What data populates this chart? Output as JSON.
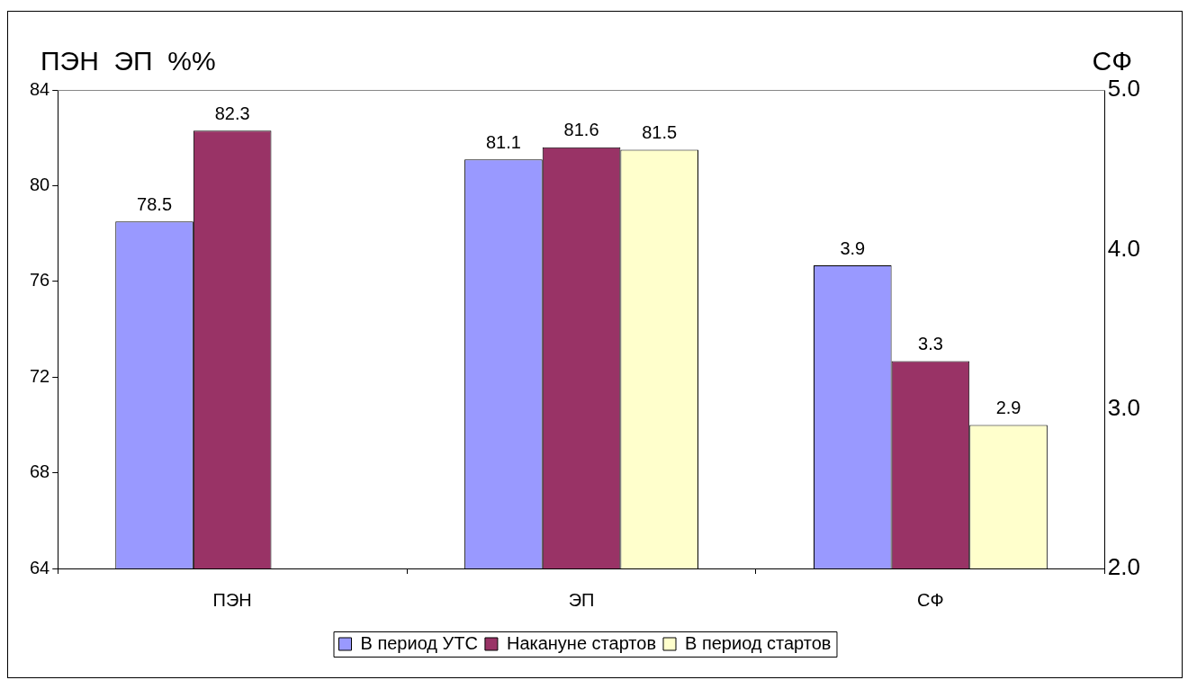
{
  "chart_data": {
    "type": "bar",
    "categories": [
      "ПЭН",
      "ЭП",
      "СФ"
    ],
    "ylabel": "ПЭН  ЭП  %%",
    "y2label": "СФ",
    "series": [
      {
        "name": "В период УТС",
        "color": "#9999ff",
        "values": [
          78.5,
          81.1,
          null
        ]
      },
      {
        "name": "Накануне стартов",
        "color": "#993366",
        "values": [
          82.3,
          81.6,
          null
        ]
      },
      {
        "name": "В период стартов",
        "color": "#ffffcc",
        "values": [
          null,
          81.5,
          null
        ]
      },
      {
        "color": "#9999ff",
        "values": [
          null,
          null,
          3.9
        ],
        "axis": "y2"
      },
      {
        "color": "#993366",
        "values": [
          null,
          null,
          3.3
        ],
        "axis": "y2"
      },
      {
        "color": "#ffffcc",
        "values": [
          null,
          null,
          2.9
        ],
        "axis": "y2"
      }
    ],
    "ylim": [
      64,
      84
    ],
    "yticks": [
      64,
      68,
      72,
      76,
      80,
      84
    ],
    "y2lim": [
      2,
      5
    ],
    "y2ticks": [
      {
        "value": 2,
        "label": "2.0"
      },
      {
        "value": 3,
        "label": "3.0"
      },
      {
        "value": 4,
        "label": "4.0"
      },
      {
        "value": 5,
        "label": "5.0"
      }
    ],
    "data_labels": true,
    "legend": "bottom"
  }
}
